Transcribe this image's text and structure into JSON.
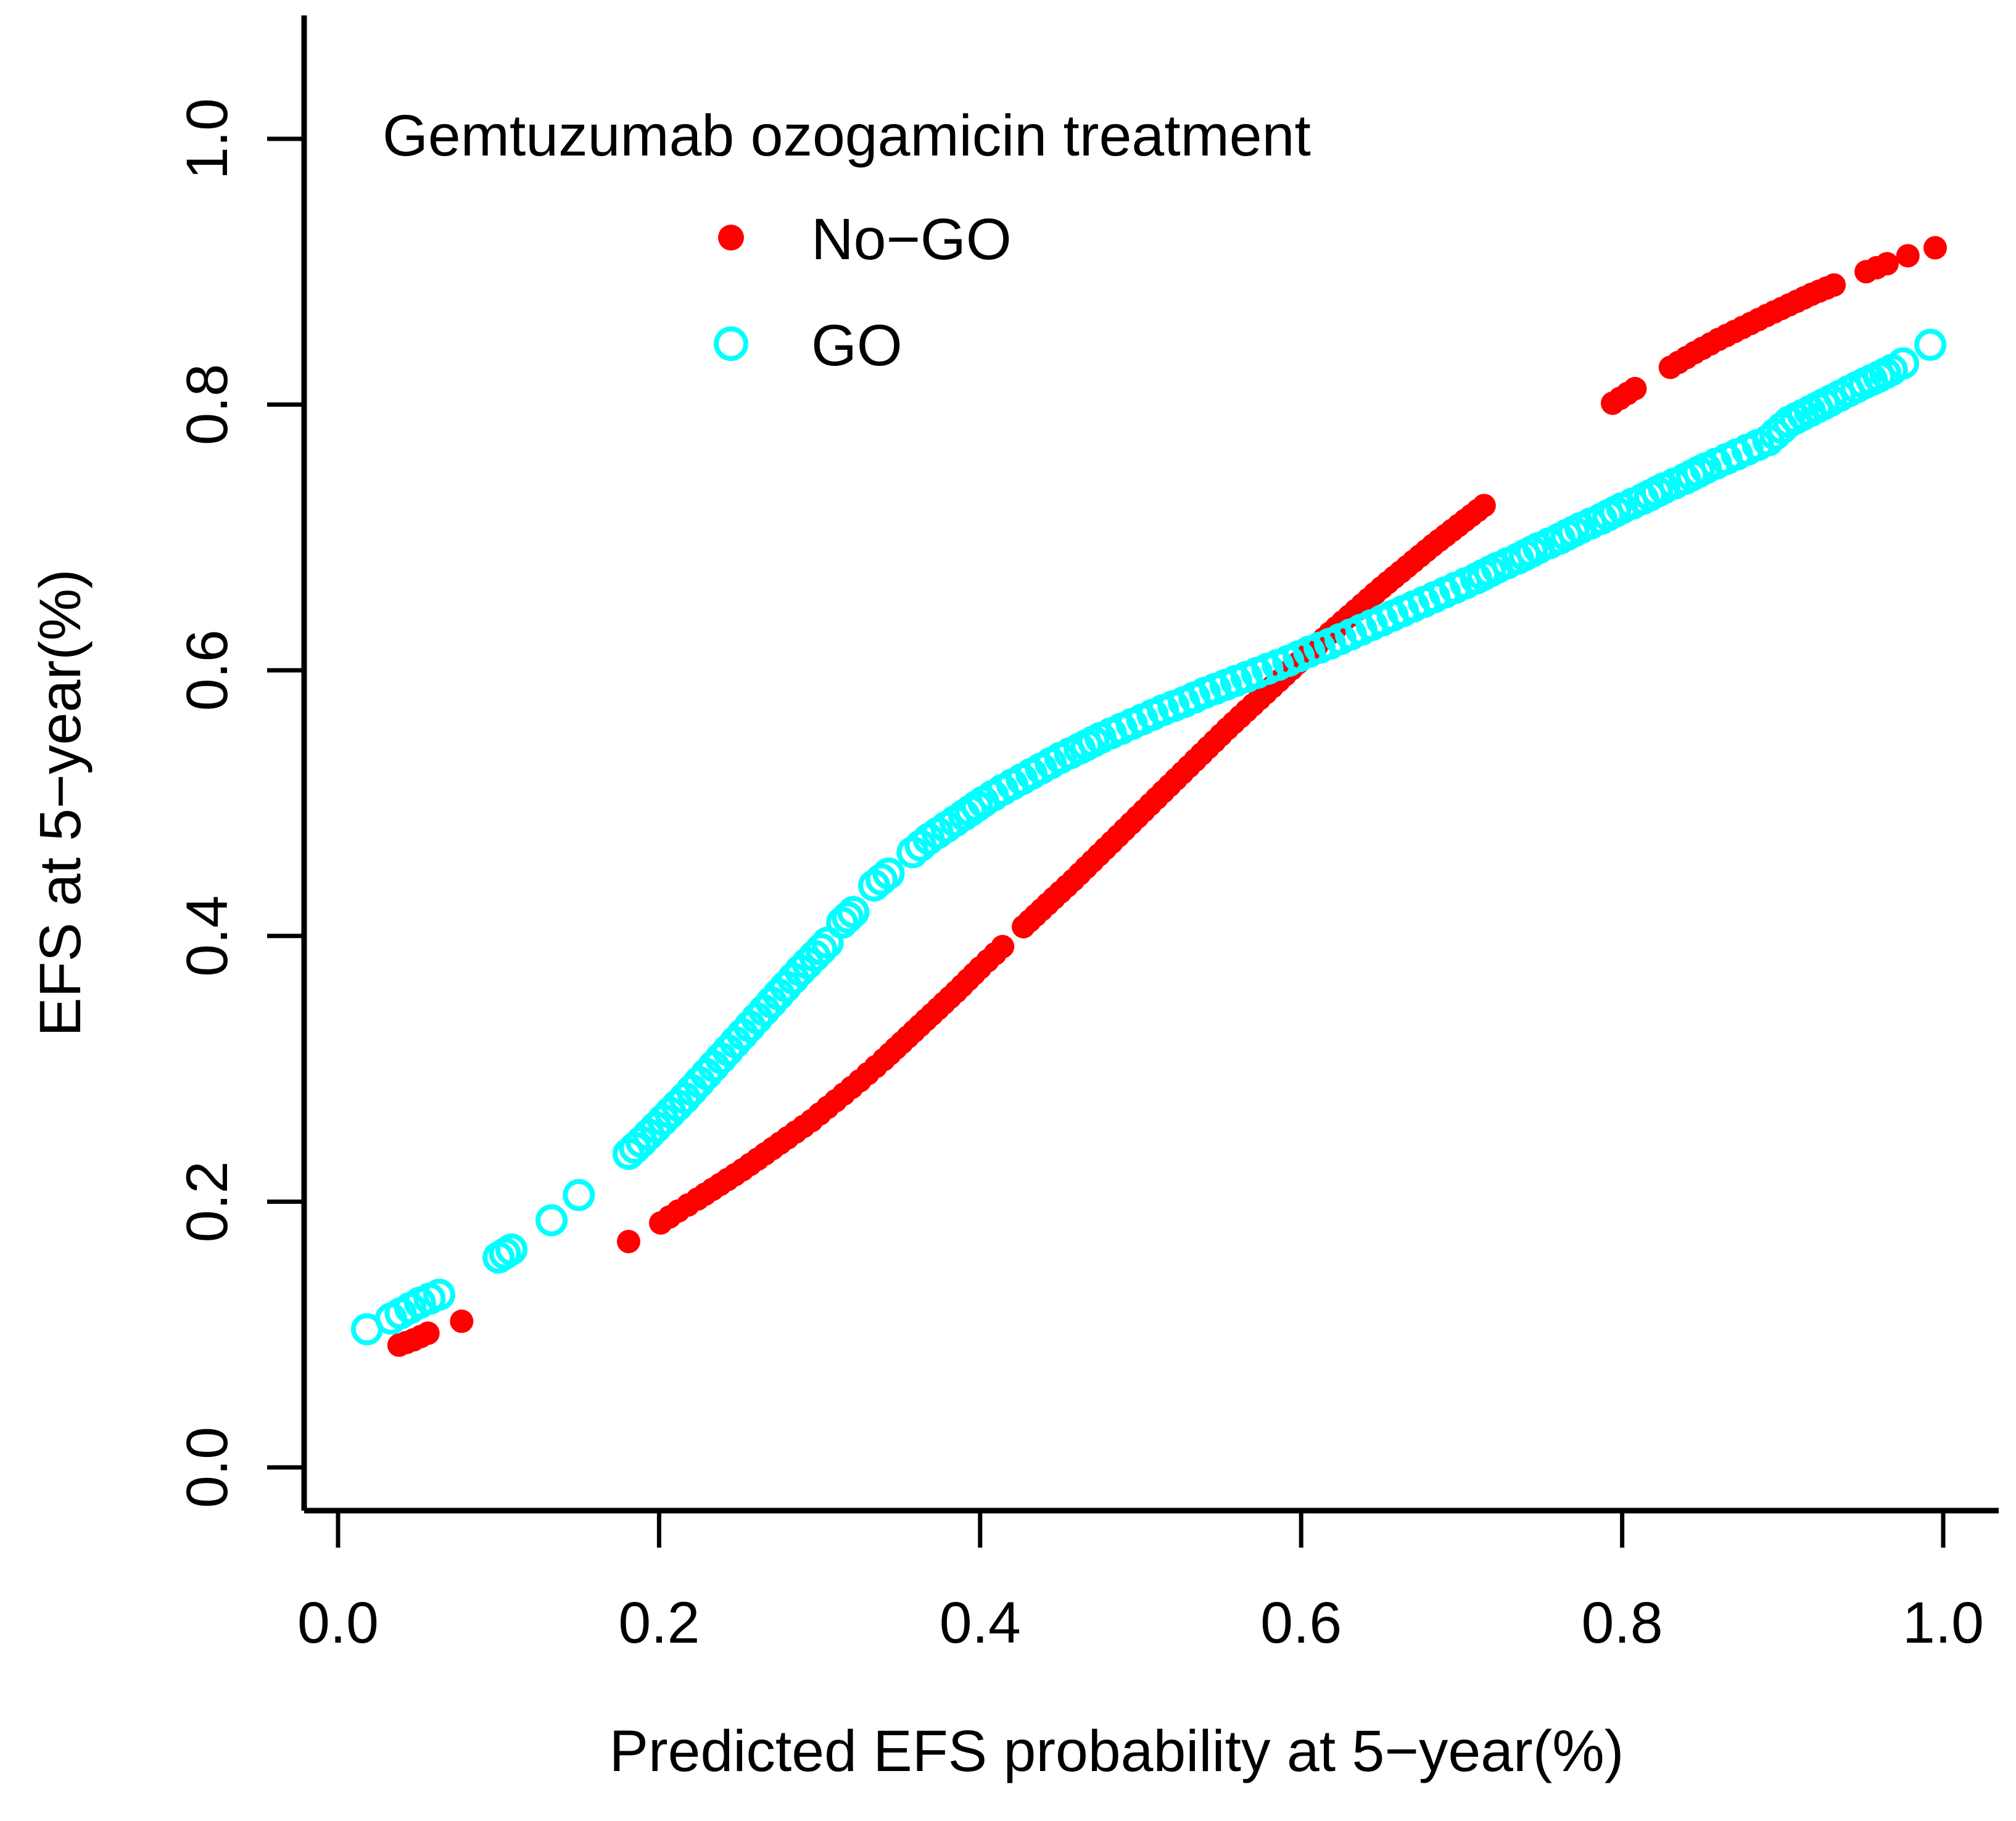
{
  "figure": {
    "background": "#ffffff",
    "axis_color": "#000000"
  },
  "legend": {
    "title": "Gemtuzumab ozogamicin treatment",
    "entries": [
      {
        "label": "No−GO",
        "marker": "filled-circle",
        "color": "#FF0000"
      },
      {
        "label": "GO",
        "marker": "open-circle",
        "color": "#00FFFF"
      }
    ]
  },
  "chart_data": {
    "type": "scatter",
    "title": "",
    "xlabel": "Predicted EFS probability at 5−year(%)",
    "ylabel": "EFS at 5−year(%)",
    "xlim": [
      0.0,
      1.0
    ],
    "ylim": [
      0.0,
      1.0
    ],
    "x_tick_labels": [
      "0.0",
      "0.2",
      "0.4",
      "0.6",
      "0.8",
      "1.0"
    ],
    "y_tick_labels": [
      "0.0",
      "0.2",
      "0.4",
      "0.6",
      "0.8",
      "1.0"
    ],
    "grid": false,
    "legend_position": "top-left",
    "marker_spacing_px": 15,
    "series": [
      {
        "id": "no-go",
        "name": "No−GO",
        "marker": "filled-circle",
        "color": "#FF0000",
        "runs": [
          [
            [
              0.038,
              0.092
            ],
            [
              0.047,
              0.096
            ],
            [
              0.056,
              0.101
            ]
          ],
          [
            [
              0.077,
              0.11
            ]
          ],
          [
            [
              0.181,
              0.17
            ]
          ],
          [
            [
              0.201,
              0.184
            ],
            [
              0.212,
              0.193
            ],
            [
              0.224,
              0.202
            ],
            [
              0.238,
              0.213
            ],
            [
              0.252,
              0.224
            ],
            [
              0.266,
              0.236
            ],
            [
              0.28,
              0.248
            ],
            [
              0.295,
              0.261
            ],
            [
              0.31,
              0.276
            ],
            [
              0.325,
              0.291
            ],
            [
              0.34,
              0.307
            ],
            [
              0.355,
              0.324
            ],
            [
              0.37,
              0.341
            ],
            [
              0.385,
              0.358
            ],
            [
              0.4,
              0.376
            ],
            [
              0.414,
              0.392
            ]
          ],
          [
            [
              0.427,
              0.407
            ],
            [
              0.442,
              0.424
            ],
            [
              0.458,
              0.442
            ],
            [
              0.474,
              0.461
            ],
            [
              0.49,
              0.48
            ],
            [
              0.506,
              0.499
            ],
            [
              0.522,
              0.518
            ],
            [
              0.538,
              0.537
            ],
            [
              0.554,
              0.556
            ],
            [
              0.57,
              0.574
            ],
            [
              0.586,
              0.592
            ],
            [
              0.602,
              0.61
            ],
            [
              0.618,
              0.628
            ],
            [
              0.634,
              0.645
            ],
            [
              0.65,
              0.662
            ],
            [
              0.666,
              0.678
            ],
            [
              0.682,
              0.694
            ],
            [
              0.698,
              0.709
            ],
            [
              0.714,
              0.724
            ]
          ],
          [
            [
              0.794,
              0.801
            ],
            [
              0.808,
              0.812
            ]
          ],
          [
            [
              0.83,
              0.828
            ],
            [
              0.845,
              0.839
            ],
            [
              0.86,
              0.849
            ],
            [
              0.875,
              0.858
            ],
            [
              0.89,
              0.867
            ],
            [
              0.904,
              0.875
            ],
            [
              0.918,
              0.883
            ],
            [
              0.932,
              0.89
            ]
          ],
          [
            [
              0.952,
              0.9
            ],
            [
              0.965,
              0.906
            ]
          ],
          [
            [
              0.978,
              0.912
            ]
          ],
          [
            [
              0.995,
              0.918
            ]
          ]
        ]
      },
      {
        "id": "go",
        "name": "GO",
        "marker": "open-circle",
        "color": "#00FFFF",
        "runs": [
          [
            [
              0.018,
              0.104
            ]
          ],
          [
            [
              0.033,
              0.112
            ],
            [
              0.039,
              0.116
            ],
            [
              0.045,
              0.12
            ],
            [
              0.051,
              0.124
            ],
            [
              0.057,
              0.127
            ],
            [
              0.063,
              0.13
            ]
          ],
          [
            [
              0.1,
              0.158
            ],
            [
              0.108,
              0.164
            ]
          ],
          [
            [
              0.133,
              0.186
            ]
          ],
          [
            [
              0.15,
              0.205
            ]
          ],
          [
            [
              0.181,
              0.236
            ],
            [
              0.189,
              0.245
            ],
            [
              0.198,
              0.256
            ],
            [
              0.207,
              0.267
            ],
            [
              0.216,
              0.278
            ],
            [
              0.225,
              0.29
            ],
            [
              0.234,
              0.302
            ],
            [
              0.243,
              0.314
            ],
            [
              0.252,
              0.326
            ],
            [
              0.261,
              0.338
            ],
            [
              0.27,
              0.35
            ],
            [
              0.279,
              0.362
            ],
            [
              0.288,
              0.374
            ],
            [
              0.297,
              0.385
            ],
            [
              0.305,
              0.395
            ]
          ],
          [
            [
              0.314,
              0.41
            ],
            [
              0.321,
              0.418
            ]
          ],
          [
            [
              0.334,
              0.438
            ],
            [
              0.343,
              0.447
            ]
          ],
          [
            [
              0.358,
              0.463
            ],
            [
              0.368,
              0.473
            ],
            [
              0.379,
              0.482
            ],
            [
              0.39,
              0.491
            ],
            [
              0.402,
              0.501
            ],
            [
              0.414,
              0.51
            ],
            [
              0.426,
              0.518
            ],
            [
              0.438,
              0.526
            ],
            [
              0.45,
              0.534
            ],
            [
              0.462,
              0.541
            ],
            [
              0.475,
              0.549
            ],
            [
              0.488,
              0.556
            ],
            [
              0.501,
              0.563
            ],
            [
              0.514,
              0.57
            ],
            [
              0.527,
              0.576
            ],
            [
              0.54,
              0.583
            ],
            [
              0.553,
              0.589
            ],
            [
              0.566,
              0.595
            ],
            [
              0.579,
              0.601
            ],
            [
              0.592,
              0.607
            ],
            [
              0.605,
              0.614
            ],
            [
              0.618,
              0.62
            ],
            [
              0.631,
              0.627
            ],
            [
              0.644,
              0.634
            ],
            [
              0.657,
              0.641
            ],
            [
              0.67,
              0.648
            ],
            [
              0.683,
              0.655
            ],
            [
              0.696,
              0.662
            ],
            [
              0.709,
              0.669
            ],
            [
              0.722,
              0.677
            ],
            [
              0.735,
              0.684
            ],
            [
              0.748,
              0.692
            ],
            [
              0.761,
              0.699
            ],
            [
              0.774,
              0.707
            ],
            [
              0.787,
              0.714
            ],
            [
              0.8,
              0.722
            ],
            [
              0.813,
              0.729
            ],
            [
              0.826,
              0.737
            ],
            [
              0.839,
              0.744
            ],
            [
              0.852,
              0.752
            ],
            [
              0.865,
              0.759
            ],
            [
              0.878,
              0.766
            ],
            [
              0.891,
              0.773
            ],
            [
              0.904,
              0.787
            ],
            [
              0.917,
              0.795
            ],
            [
              0.93,
              0.803
            ],
            [
              0.941,
              0.81
            ],
            [
              0.951,
              0.816
            ],
            [
              0.96,
              0.821
            ],
            [
              0.968,
              0.826
            ],
            [
              0.975,
              0.831
            ]
          ],
          [
            [
              0.992,
              0.845
            ]
          ]
        ]
      }
    ]
  }
}
